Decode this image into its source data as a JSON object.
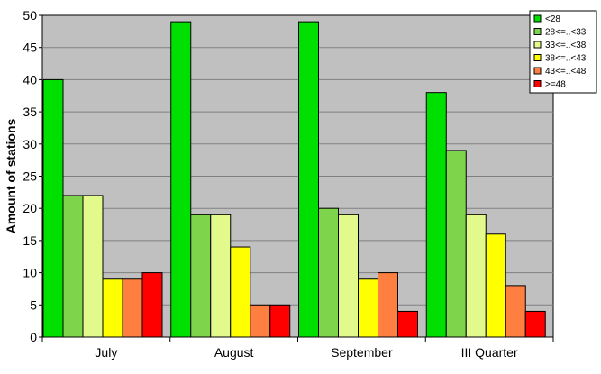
{
  "chart_data": {
    "type": "bar",
    "title": "",
    "xlabel": "",
    "ylabel": "Amount of stations",
    "ylim": [
      0,
      50
    ],
    "yticks": [
      0,
      5,
      10,
      15,
      20,
      25,
      30,
      35,
      40,
      45,
      50
    ],
    "grid": true,
    "legend_position": "top-right",
    "plot_background": "#c0c0c0",
    "categories": [
      "July",
      "August",
      "September",
      "III Quarter"
    ],
    "series": [
      {
        "name": "<28",
        "color": "#00e000",
        "values": [
          40,
          49,
          49,
          38
        ]
      },
      {
        "name": "28<=..<33",
        "color": "#7ed44a",
        "values": [
          22,
          19,
          20,
          29
        ]
      },
      {
        "name": "33<=..<38",
        "color": "#e2f98c",
        "values": [
          22,
          19,
          19,
          19
        ]
      },
      {
        "name": "38<=..<43",
        "color": "#ffff00",
        "values": [
          9,
          14,
          9,
          16
        ]
      },
      {
        "name": "43<=..<48",
        "color": "#ff7f40",
        "values": [
          9,
          5,
          10,
          8
        ]
      },
      {
        "name": ">=48",
        "color": "#ff0000",
        "values": [
          10,
          5,
          4,
          4
        ]
      }
    ]
  }
}
